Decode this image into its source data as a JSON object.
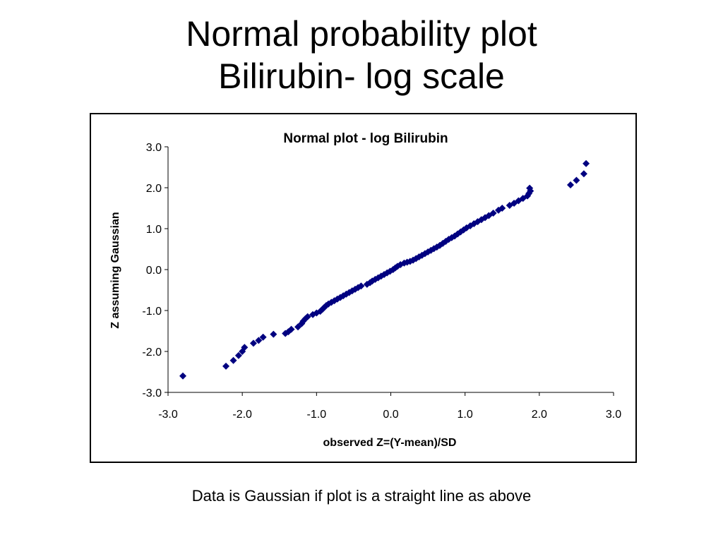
{
  "slide": {
    "title_line1": "Normal probability plot",
    "title_line2": "Bilirubin- log scale",
    "caption": "Data is Gaussian if plot is a straight line as above"
  },
  "colors": {
    "marker": "#000080",
    "axis": "#000000"
  },
  "chart_data": {
    "type": "scatter",
    "title": "Normal plot - log Bilirubin",
    "xlabel": "observed Z=(Y-mean)/SD",
    "ylabel": "Z assuming Gaussian",
    "xlim": [
      -3.0,
      3.0
    ],
    "ylim": [
      -3.0,
      3.0
    ],
    "xticks": [
      "-3.0",
      "-2.0",
      "-1.0",
      "0.0",
      "1.0",
      "2.0",
      "3.0"
    ],
    "yticks": [
      "-3.0",
      "-2.0",
      "-1.0",
      "0.0",
      "1.0",
      "2.0",
      "3.0"
    ],
    "grid": false,
    "legend": "none",
    "marker": "diamond",
    "series": [
      {
        "points": [
          [
            -2.8,
            -2.6
          ],
          [
            -2.22,
            -2.36
          ],
          [
            -2.12,
            -2.22
          ],
          [
            -2.05,
            -2.1
          ],
          [
            -2.0,
            -2.0
          ],
          [
            -1.97,
            -1.9
          ],
          [
            -1.85,
            -1.8
          ],
          [
            -1.78,
            -1.73
          ],
          [
            -1.72,
            -1.65
          ],
          [
            -1.58,
            -1.58
          ],
          [
            -1.42,
            -1.56
          ],
          [
            -1.38,
            -1.52
          ],
          [
            -1.34,
            -1.46
          ],
          [
            -1.25,
            -1.4
          ],
          [
            -1.2,
            -1.32
          ],
          [
            -1.18,
            -1.26
          ],
          [
            -1.15,
            -1.2
          ],
          [
            -1.12,
            -1.15
          ],
          [
            -1.05,
            -1.1
          ],
          [
            -1.0,
            -1.06
          ],
          [
            -0.95,
            -1.02
          ],
          [
            -0.92,
            -0.97
          ],
          [
            -0.9,
            -0.93
          ],
          [
            -0.87,
            -0.88
          ],
          [
            -0.84,
            -0.84
          ],
          [
            -0.8,
            -0.8
          ],
          [
            -0.76,
            -0.76
          ],
          [
            -0.72,
            -0.72
          ],
          [
            -0.68,
            -0.68
          ],
          [
            -0.64,
            -0.64
          ],
          [
            -0.6,
            -0.6
          ],
          [
            -0.56,
            -0.56
          ],
          [
            -0.52,
            -0.52
          ],
          [
            -0.48,
            -0.48
          ],
          [
            -0.44,
            -0.44
          ],
          [
            -0.4,
            -0.4
          ],
          [
            -0.32,
            -0.36
          ],
          [
            -0.28,
            -0.32
          ],
          [
            -0.25,
            -0.28
          ],
          [
            -0.21,
            -0.24
          ],
          [
            -0.17,
            -0.2
          ],
          [
            -0.13,
            -0.16
          ],
          [
            -0.09,
            -0.12
          ],
          [
            -0.05,
            -0.08
          ],
          [
            -0.01,
            -0.04
          ],
          [
            0.03,
            0.0
          ],
          [
            0.06,
            0.04
          ],
          [
            0.09,
            0.08
          ],
          [
            0.13,
            0.12
          ],
          [
            0.18,
            0.16
          ],
          [
            0.22,
            0.18
          ],
          [
            0.26,
            0.2
          ],
          [
            0.3,
            0.23
          ],
          [
            0.34,
            0.27
          ],
          [
            0.38,
            0.31
          ],
          [
            0.42,
            0.35
          ],
          [
            0.46,
            0.39
          ],
          [
            0.5,
            0.43
          ],
          [
            0.54,
            0.47
          ],
          [
            0.58,
            0.51
          ],
          [
            0.62,
            0.55
          ],
          [
            0.66,
            0.59
          ],
          [
            0.7,
            0.64
          ],
          [
            0.74,
            0.69
          ],
          [
            0.78,
            0.74
          ],
          [
            0.82,
            0.78
          ],
          [
            0.86,
            0.82
          ],
          [
            0.9,
            0.87
          ],
          [
            0.94,
            0.92
          ],
          [
            0.98,
            0.97
          ],
          [
            1.02,
            1.02
          ],
          [
            1.07,
            1.07
          ],
          [
            1.12,
            1.12
          ],
          [
            1.17,
            1.17
          ],
          [
            1.22,
            1.22
          ],
          [
            1.27,
            1.27
          ],
          [
            1.32,
            1.32
          ],
          [
            1.38,
            1.38
          ],
          [
            1.45,
            1.45
          ],
          [
            1.5,
            1.5
          ],
          [
            1.6,
            1.57
          ],
          [
            1.66,
            1.62
          ],
          [
            1.72,
            1.68
          ],
          [
            1.78,
            1.74
          ],
          [
            1.84,
            1.8
          ],
          [
            1.86,
            1.86
          ],
          [
            1.88,
            1.92
          ],
          [
            1.87,
            1.99
          ],
          [
            2.42,
            2.07
          ],
          [
            2.5,
            2.18
          ],
          [
            2.6,
            2.34
          ],
          [
            2.63,
            2.59
          ]
        ]
      }
    ]
  }
}
